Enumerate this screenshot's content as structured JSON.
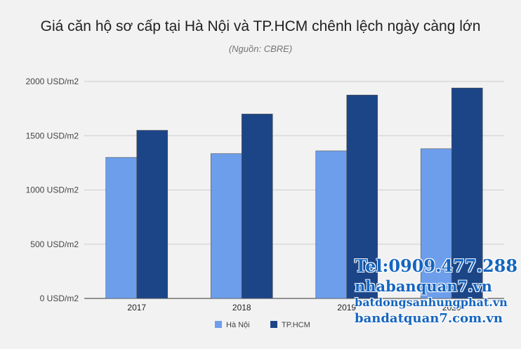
{
  "chart_data": {
    "type": "bar",
    "title": "Giá căn hộ sơ cấp tại Hà Nội và TP.HCM chênh lệch ngày càng lớn",
    "subtitle": "(Nguồn: CBRE)",
    "categories": [
      "2017",
      "2018",
      "2019",
      "2020"
    ],
    "series": [
      {
        "name": "Hà Nội",
        "color": "#6d9eeb",
        "values": [
          1300,
          1335,
          1360,
          1380
        ]
      },
      {
        "name": "TP.HCM",
        "color": "#1c4587",
        "values": [
          1550,
          1700,
          1875,
          1940
        ]
      }
    ],
    "y_ticks": [
      "0 USD/m2",
      "500 USD/m2",
      "1000 USD/m2",
      "1500 USD/m2",
      "2000 USD/m2"
    ],
    "y_tick_values": [
      0,
      500,
      1000,
      1500,
      2000
    ],
    "ylim": [
      0,
      2000
    ],
    "grid": true,
    "legend_position": "bottom"
  },
  "watermark": {
    "line1": "Tel:0909.477.288",
    "line2": "nhabanquan7.vn",
    "line3": "batdongsanhungphat.vn",
    "line4": "bandatquan7.com.vn"
  }
}
